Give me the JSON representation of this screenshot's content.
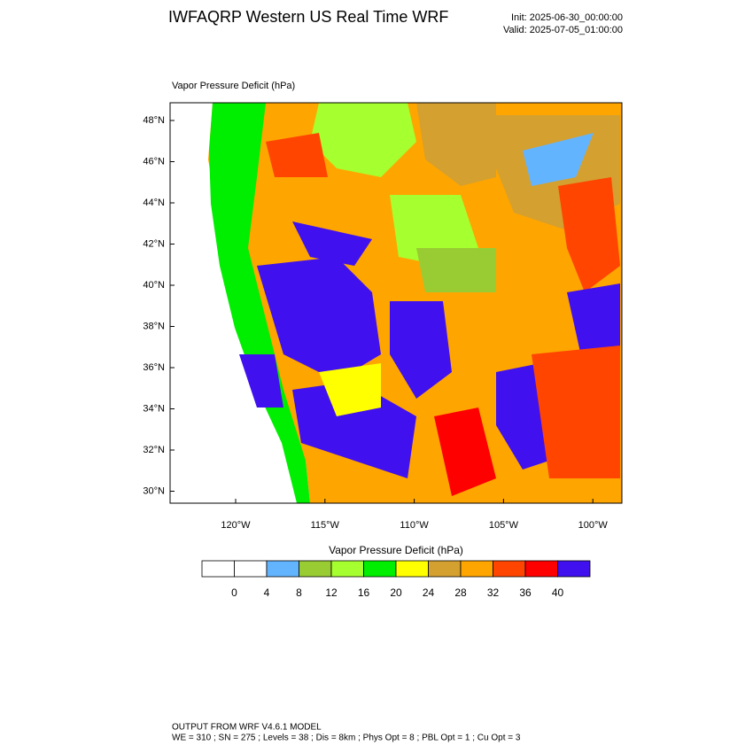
{
  "header": {
    "title": "IWFAQRP Western US Real Time WRF",
    "init": "Init: 2025-06-30_00:00:00",
    "valid": "Valid: 2025-07-05_01:00:00"
  },
  "map": {
    "field_title": "Vapor Pressure Deficit   (hPa)",
    "lat_labels": [
      "48°N",
      "46°N",
      "44°N",
      "42°N",
      "40°N",
      "38°N",
      "36°N",
      "34°N",
      "32°N",
      "30°N"
    ],
    "lon_labels": [
      "120°W",
      "115°W",
      "110°W",
      "105°W",
      "100°W"
    ]
  },
  "colorbar": {
    "title": "Vapor Pressure Deficit  (hPa)",
    "levels": [
      0,
      4,
      8,
      12,
      16,
      20,
      24,
      28,
      32,
      36,
      40
    ],
    "colors": [
      "#ffffff",
      "#ffffff",
      "#63b4ff",
      "#99cc33",
      "#a6ff2e",
      "#00ee00",
      "#ffff00",
      "#d4a030",
      "#ffa500",
      "#ff4500",
      "#ff0000",
      "#4010ee"
    ]
  },
  "footer": {
    "line1": "OUTPUT FROM WRF V4.6.1 MODEL",
    "line2": "WE = 310 ; SN = 275 ; Levels = 38 ; Dis = 8km ; Phys Opt = 8 ; PBL Opt = 1 ; Cu Opt = 3"
  }
}
